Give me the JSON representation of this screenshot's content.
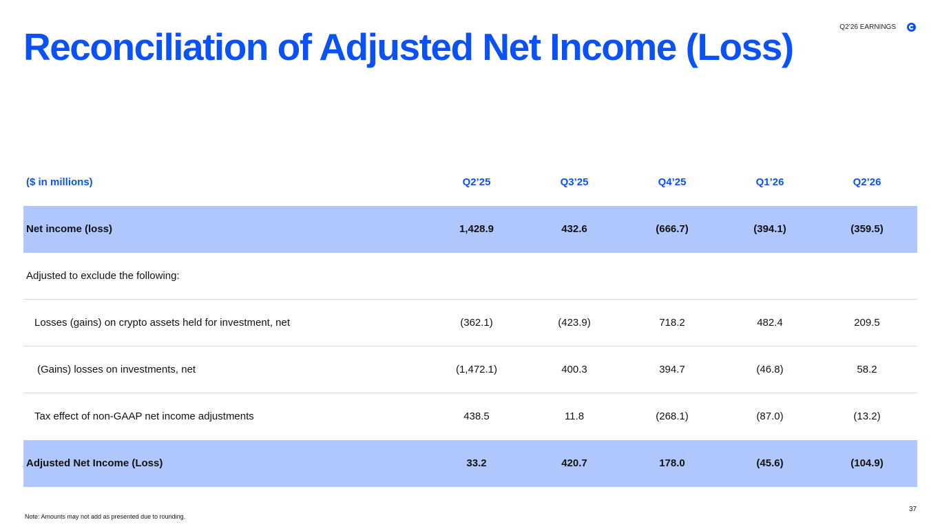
{
  "header": {
    "title": "Reconciliation of Adjusted Net Income (Loss)",
    "tag": "Q2’26 EARNINGS"
  },
  "table": {
    "columns": [
      "($ in millions)",
      "Q2’25",
      "Q3’25",
      "Q4’25",
      "Q1’26",
      "Q2’26"
    ],
    "rows": [
      [
        "Net income (loss)",
        "1,428.9",
        "432.6",
        "(666.7)",
        "(394.1)",
        "(359.5)"
      ],
      [
        "Adjusted to exclude the following:"
      ],
      [
        "Losses (gains) on crypto assets held for investment, net",
        "(362.1)",
        "(423.9)",
        "718.2",
        "482.4",
        "209.5"
      ],
      [
        "(Gains) losses on investments, net",
        "(1,472.1)",
        "400.3",
        "394.7",
        "(46.8)",
        "58.2"
      ],
      [
        "Tax effect of non-GAAP net income adjustments",
        "438.5",
        "11.8",
        "(268.1)",
        "(87.0)",
        "(13.2)"
      ],
      [
        "Adjusted Net Income (Loss)",
        "33.2",
        "420.7",
        "178.0",
        "(45.6)",
        "(104.9)"
      ]
    ]
  },
  "footer": {
    "note": "Note: Amounts may not add as presented due to rounding.",
    "page": "37"
  }
}
